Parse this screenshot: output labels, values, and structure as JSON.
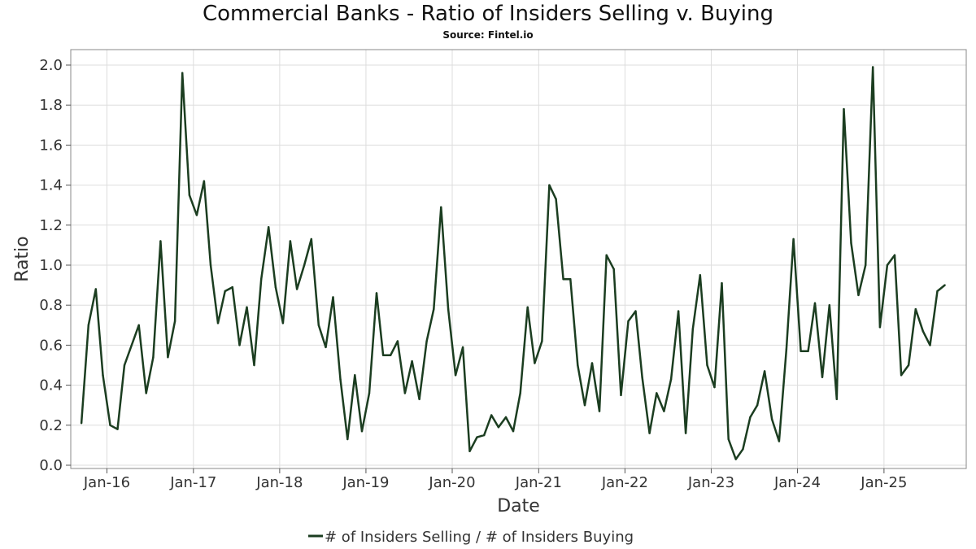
{
  "chart_data": {
    "type": "line",
    "title": "Commercial Banks - Ratio of Insiders Selling v. Buying",
    "subtitle": "Source: Fintel.io",
    "xlabel": "Date",
    "ylabel": "Ratio",
    "ylim": [
      0,
      2.0
    ],
    "y_ticks": [
      0.0,
      0.2,
      0.4,
      0.6,
      0.8,
      1.0,
      1.2,
      1.4,
      1.6,
      1.8,
      2.0
    ],
    "x_ticks": [
      {
        "date": "2016-01-01",
        "label": "Jan-16"
      },
      {
        "date": "2017-01-01",
        "label": "Jan-17"
      },
      {
        "date": "2018-01-01",
        "label": "Jan-18"
      },
      {
        "date": "2019-01-01",
        "label": "Jan-19"
      },
      {
        "date": "2020-01-01",
        "label": "Jan-20"
      },
      {
        "date": "2021-01-01",
        "label": "Jan-21"
      },
      {
        "date": "2022-01-01",
        "label": "Jan-22"
      },
      {
        "date": "2023-01-01",
        "label": "Jan-23"
      },
      {
        "date": "2024-01-01",
        "label": "Jan-24"
      },
      {
        "date": "2025-01-01",
        "label": "Jan-25"
      }
    ],
    "xlim": [
      "2015-08-01",
      "2025-12-15"
    ],
    "grid": true,
    "legend_position": "bottom-center",
    "series": [
      {
        "name": "# of Insiders Selling / # of Insiders Buying",
        "color": "#1b3d20",
        "points": [
          [
            "2015-09-15",
            0.21
          ],
          [
            "2015-10-15",
            0.7
          ],
          [
            "2015-11-15",
            0.88
          ],
          [
            "2015-12-15",
            0.45
          ],
          [
            "2016-01-15",
            0.2
          ],
          [
            "2016-02-15",
            0.18
          ],
          [
            "2016-03-15",
            0.5
          ],
          [
            "2016-05-15",
            0.7
          ],
          [
            "2016-06-15",
            0.36
          ],
          [
            "2016-07-15",
            0.54
          ],
          [
            "2016-08-15",
            1.12
          ],
          [
            "2016-09-15",
            0.54
          ],
          [
            "2016-10-15",
            0.72
          ],
          [
            "2016-11-15",
            1.96
          ],
          [
            "2016-12-15",
            1.35
          ],
          [
            "2017-01-15",
            1.25
          ],
          [
            "2017-02-15",
            1.42
          ],
          [
            "2017-03-15",
            1.0
          ],
          [
            "2017-04-15",
            0.71
          ],
          [
            "2017-05-15",
            0.87
          ],
          [
            "2017-06-15",
            0.89
          ],
          [
            "2017-07-15",
            0.6
          ],
          [
            "2017-08-15",
            0.79
          ],
          [
            "2017-09-15",
            0.5
          ],
          [
            "2017-10-15",
            0.93
          ],
          [
            "2017-11-15",
            1.19
          ],
          [
            "2017-12-15",
            0.89
          ],
          [
            "2018-01-15",
            0.71
          ],
          [
            "2018-02-15",
            1.12
          ],
          [
            "2018-03-15",
            0.88
          ],
          [
            "2018-04-15",
            1.0
          ],
          [
            "2018-05-15",
            1.13
          ],
          [
            "2018-06-15",
            0.7
          ],
          [
            "2018-07-15",
            0.59
          ],
          [
            "2018-08-15",
            0.84
          ],
          [
            "2018-09-15",
            0.43
          ],
          [
            "2018-10-15",
            0.13
          ],
          [
            "2018-11-15",
            0.45
          ],
          [
            "2018-12-15",
            0.17
          ],
          [
            "2019-01-15",
            0.36
          ],
          [
            "2019-02-15",
            0.86
          ],
          [
            "2019-03-15",
            0.55
          ],
          [
            "2019-04-15",
            0.55
          ],
          [
            "2019-05-15",
            0.62
          ],
          [
            "2019-06-15",
            0.36
          ],
          [
            "2019-07-15",
            0.52
          ],
          [
            "2019-08-15",
            0.33
          ],
          [
            "2019-09-15",
            0.62
          ],
          [
            "2019-10-15",
            0.78
          ],
          [
            "2019-11-15",
            1.29
          ],
          [
            "2019-12-15",
            0.78
          ],
          [
            "2020-01-15",
            0.45
          ],
          [
            "2020-02-15",
            0.59
          ],
          [
            "2020-03-15",
            0.07
          ],
          [
            "2020-04-15",
            0.14
          ],
          [
            "2020-05-15",
            0.15
          ],
          [
            "2020-06-15",
            0.25
          ],
          [
            "2020-07-15",
            0.19
          ],
          [
            "2020-08-15",
            0.24
          ],
          [
            "2020-09-15",
            0.17
          ],
          [
            "2020-10-15",
            0.36
          ],
          [
            "2020-11-15",
            0.79
          ],
          [
            "2020-12-15",
            0.51
          ],
          [
            "2021-01-15",
            0.62
          ],
          [
            "2021-02-15",
            1.4
          ],
          [
            "2021-03-15",
            1.33
          ],
          [
            "2021-04-15",
            0.93
          ],
          [
            "2021-05-15",
            0.93
          ],
          [
            "2021-06-15",
            0.5
          ],
          [
            "2021-07-15",
            0.3
          ],
          [
            "2021-08-15",
            0.51
          ],
          [
            "2021-09-15",
            0.27
          ],
          [
            "2021-10-15",
            1.05
          ],
          [
            "2021-11-15",
            0.98
          ],
          [
            "2021-12-15",
            0.35
          ],
          [
            "2022-01-15",
            0.72
          ],
          [
            "2022-02-15",
            0.77
          ],
          [
            "2022-03-15",
            0.44
          ],
          [
            "2022-04-15",
            0.16
          ],
          [
            "2022-05-15",
            0.36
          ],
          [
            "2022-06-15",
            0.27
          ],
          [
            "2022-07-15",
            0.43
          ],
          [
            "2022-08-15",
            0.77
          ],
          [
            "2022-09-15",
            0.16
          ],
          [
            "2022-10-15",
            0.68
          ],
          [
            "2022-11-15",
            0.95
          ],
          [
            "2022-12-15",
            0.5
          ],
          [
            "2023-01-15",
            0.39
          ],
          [
            "2023-02-15",
            0.91
          ],
          [
            "2023-03-15",
            0.13
          ],
          [
            "2023-04-15",
            0.03
          ],
          [
            "2023-05-15",
            0.08
          ],
          [
            "2023-06-15",
            0.24
          ],
          [
            "2023-07-15",
            0.3
          ],
          [
            "2023-08-15",
            0.47
          ],
          [
            "2023-09-15",
            0.23
          ],
          [
            "2023-10-15",
            0.12
          ],
          [
            "2023-11-15",
            0.58
          ],
          [
            "2023-12-15",
            1.13
          ],
          [
            "2024-01-15",
            0.57
          ],
          [
            "2024-02-15",
            0.57
          ],
          [
            "2024-03-15",
            0.81
          ],
          [
            "2024-04-15",
            0.44
          ],
          [
            "2024-05-15",
            0.8
          ],
          [
            "2024-06-15",
            0.33
          ],
          [
            "2024-07-15",
            1.78
          ],
          [
            "2024-08-15",
            1.11
          ],
          [
            "2024-09-15",
            0.85
          ],
          [
            "2024-10-15",
            1.0
          ],
          [
            "2024-11-15",
            1.99
          ],
          [
            "2024-12-15",
            0.69
          ],
          [
            "2025-01-15",
            1.0
          ],
          [
            "2025-02-15",
            1.05
          ],
          [
            "2025-03-15",
            0.45
          ],
          [
            "2025-04-15",
            0.5
          ],
          [
            "2025-05-15",
            0.78
          ],
          [
            "2025-06-15",
            0.67
          ],
          [
            "2025-07-15",
            0.6
          ],
          [
            "2025-08-15",
            0.87
          ],
          [
            "2025-09-15",
            0.9
          ]
        ]
      }
    ]
  }
}
